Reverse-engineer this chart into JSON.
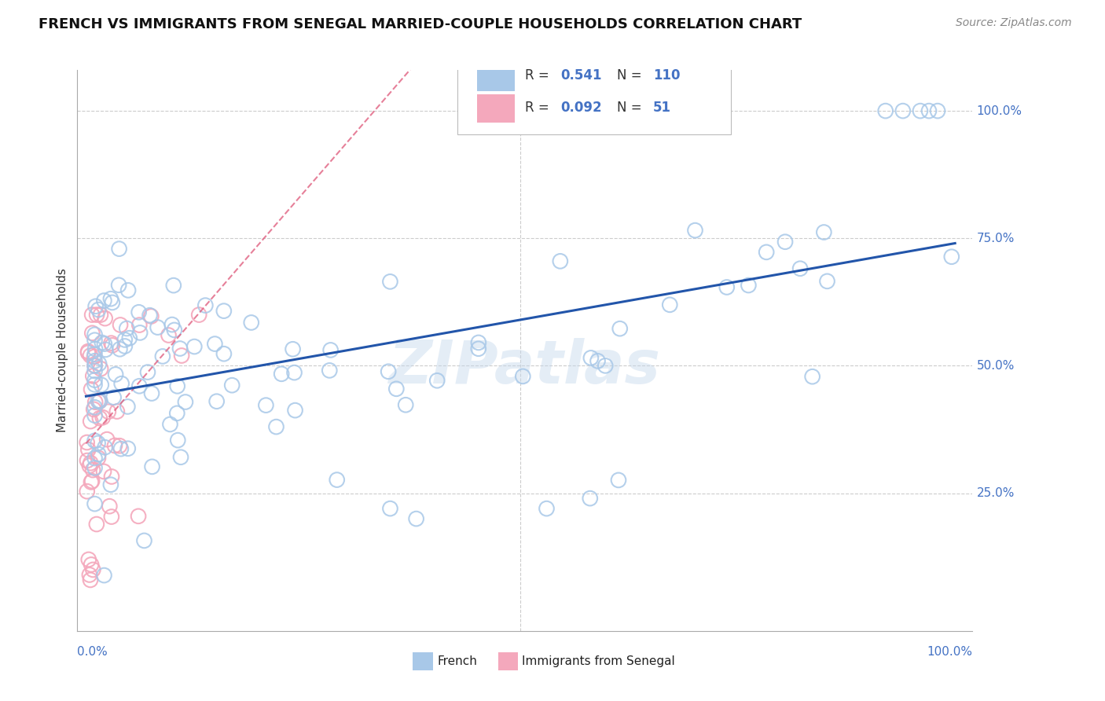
{
  "title": "FRENCH VS IMMIGRANTS FROM SENEGAL MARRIED-COUPLE HOUSEHOLDS CORRELATION CHART",
  "source": "Source: ZipAtlas.com",
  "ylabel": "Married-couple Households",
  "french_R": 0.541,
  "french_N": 110,
  "senegal_R": 0.092,
  "senegal_N": 51,
  "french_color": "#a8c8e8",
  "senegal_color": "#f4a8bc",
  "french_line_color": "#2255aa",
  "senegal_line_color": "#e06080",
  "watermark": "ZIPatlas",
  "background_color": "#ffffff",
  "ytick_positions": [
    0.25,
    0.5,
    0.75,
    1.0
  ],
  "ytick_labels": [
    "25.0%",
    "50.0%",
    "75.0%",
    "100.0%"
  ],
  "xlim": [
    -0.01,
    1.02
  ],
  "ylim": [
    -0.02,
    1.08
  ]
}
